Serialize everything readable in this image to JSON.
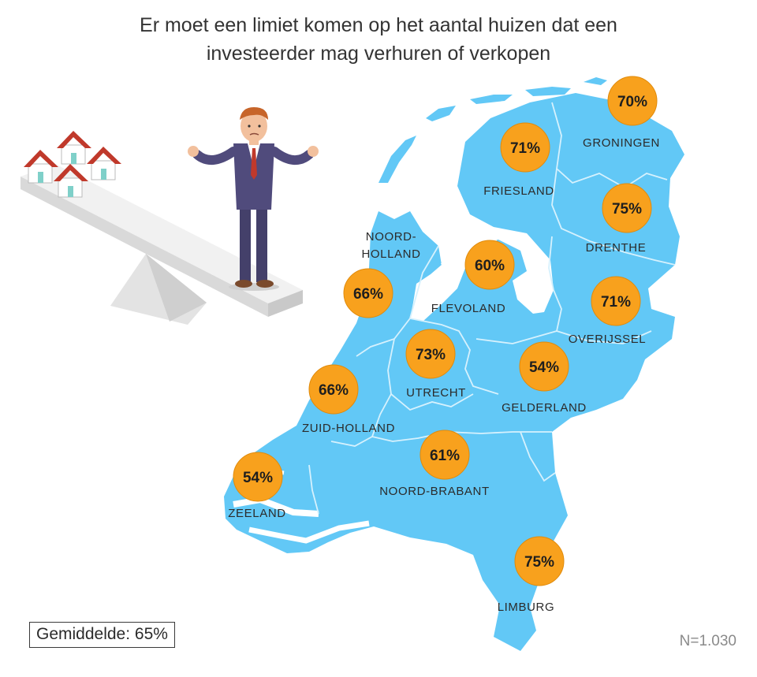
{
  "title": {
    "line1": "Er moet een limiet komen op het aantal huizen dat een",
    "line2": "investeerder mag verhuren of verkopen"
  },
  "colors": {
    "land": "#62c8f6",
    "border": "#d6f1fd",
    "badge": "#f8a11d",
    "badge_edge": "#e08a0a"
  },
  "provinces": [
    {
      "key": "groningen",
      "name": "GRONINGEN",
      "value": "70%"
    },
    {
      "key": "friesland",
      "name": "FRIESLAND",
      "value": "71%"
    },
    {
      "key": "drenthe",
      "name": "DRENTHE",
      "value": "75%"
    },
    {
      "key": "noord_holland",
      "name_line1": "NOORD-",
      "name_line2": "HOLLAND",
      "value": "66%"
    },
    {
      "key": "flevoland",
      "name": "FLEVOLAND",
      "value": "60%"
    },
    {
      "key": "overijssel",
      "name": "OVERIJSSEL",
      "value": "71%"
    },
    {
      "key": "utrecht",
      "name": "UTRECHT",
      "value": "73%"
    },
    {
      "key": "gelderland",
      "name": "GELDERLAND",
      "value": "54%"
    },
    {
      "key": "zuid_holland",
      "name": "ZUID-HOLLAND",
      "value": "66%"
    },
    {
      "key": "noord_brabant",
      "name": "NOORD-BRABANT",
      "value": "61%"
    },
    {
      "key": "zeeland",
      "name": "ZEELAND",
      "value": "54%"
    },
    {
      "key": "limburg",
      "name": "LIMBURG",
      "value": "75%"
    }
  ],
  "footer": {
    "average": "Gemiddelde: 65%",
    "sample": "N=1.030"
  }
}
